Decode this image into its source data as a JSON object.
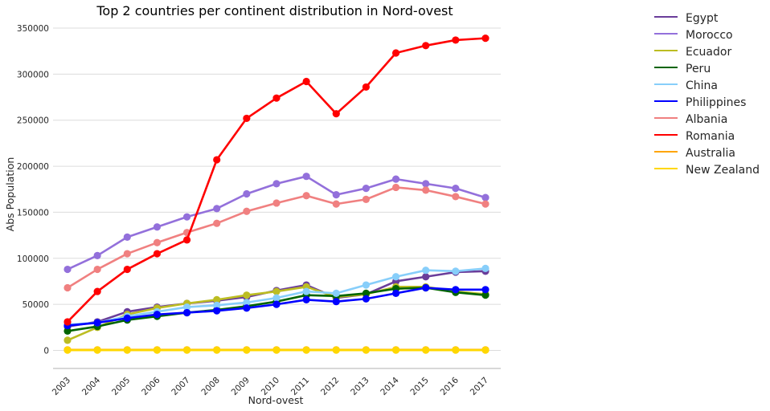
{
  "chart_data": {
    "type": "line",
    "title": "Top 2 countries per continent distribution in Nord-ovest",
    "xlabel": "Nord-ovest",
    "ylabel": "Abs Population",
    "ylim": [
      -20000,
      355000
    ],
    "yticks": [
      0,
      50000,
      100000,
      150000,
      200000,
      250000,
      300000,
      350000
    ],
    "grid": "horizontal",
    "legend_position": "outside-right",
    "categories": [
      "2003",
      "2004",
      "2005",
      "2006",
      "2007",
      "2008",
      "2009",
      "2010",
      "2011",
      "2012",
      "2013",
      "2014",
      "2015",
      "2016",
      "2017"
    ],
    "series": [
      {
        "name": "Egypt",
        "color": "#6a3d9a",
        "values": [
          26000,
          31000,
          42000,
          47000,
          51000,
          54000,
          58000,
          65000,
          71000,
          57000,
          61000,
          75000,
          80000,
          85000,
          86000
        ]
      },
      {
        "name": "Morocco",
        "color": "#9370db",
        "values": [
          88000,
          103000,
          123000,
          134000,
          145000,
          154000,
          170000,
          181000,
          189000,
          169000,
          176000,
          186000,
          181000,
          176000,
          166000
        ]
      },
      {
        "name": "Ecuador",
        "color": "#bcbd22",
        "values": [
          11000,
          25000,
          39000,
          46000,
          51000,
          55000,
          60000,
          64000,
          69000,
          58000,
          61000,
          69000,
          69000,
          64000,
          61000
        ]
      },
      {
        "name": "Peru",
        "color": "#006400",
        "values": [
          21000,
          26000,
          33000,
          37000,
          41000,
          44000,
          48000,
          53000,
          60000,
          59000,
          62000,
          67000,
          68000,
          63000,
          60000
        ]
      },
      {
        "name": "China",
        "color": "#87cefa",
        "values": [
          28000,
          30000,
          37000,
          42000,
          47000,
          49000,
          52000,
          57000,
          64000,
          62000,
          71000,
          80000,
          87000,
          86000,
          89000
        ]
      },
      {
        "name": "Philippines",
        "color": "#0000ff",
        "values": [
          27000,
          30000,
          35000,
          39000,
          41000,
          43000,
          46000,
          50000,
          55000,
          53000,
          56000,
          62000,
          68000,
          66000,
          66000
        ]
      },
      {
        "name": "Albania",
        "color": "#f08080",
        "values": [
          68000,
          88000,
          105000,
          117000,
          128000,
          138000,
          151000,
          160000,
          168000,
          159000,
          164000,
          177000,
          174000,
          167000,
          159000
        ]
      },
      {
        "name": "Romania",
        "color": "#ff0000",
        "values": [
          31000,
          64000,
          88000,
          105000,
          120000,
          207000,
          252000,
          274000,
          292000,
          257000,
          286000,
          323000,
          331000,
          337000,
          339000
        ]
      },
      {
        "name": "Australia",
        "color": "#ffa500",
        "values": [
          600,
          600,
          600,
          600,
          600,
          600,
          600,
          600,
          600,
          600,
          600,
          600,
          600,
          600,
          600
        ]
      },
      {
        "name": "New Zealand",
        "color": "#ffd700",
        "values": [
          300,
          300,
          300,
          300,
          300,
          300,
          300,
          300,
          300,
          300,
          300,
          300,
          300,
          300,
          300
        ]
      }
    ]
  }
}
